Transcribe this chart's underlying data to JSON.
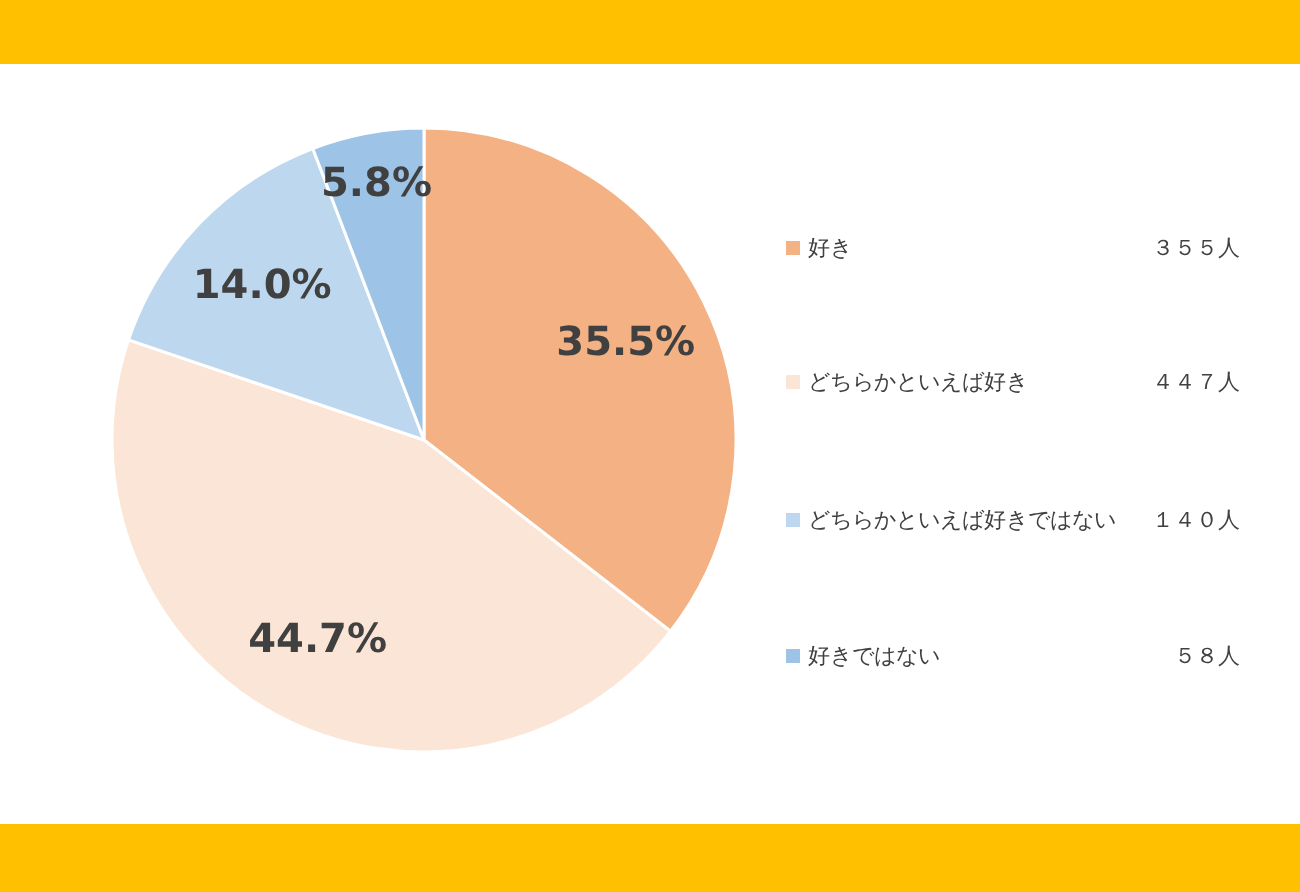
{
  "chart_data": {
    "type": "pie",
    "categories": [
      "好き",
      "どちらかといえば好き",
      "どちらかといえば好きではない",
      "好きではない"
    ],
    "values": [
      35.5,
      44.7,
      14.0,
      5.8
    ],
    "colors": [
      "#f4b183",
      "#fbe5d6",
      "#bdd7ee",
      "#9dc3e6"
    ],
    "value_labels": [
      "35.5%",
      "44.7%",
      "14.0%",
      "5.8%"
    ],
    "annotations": [
      "３５５人",
      "４４７人",
      "１４０人",
      "５８人"
    ],
    "legend": "right"
  }
}
